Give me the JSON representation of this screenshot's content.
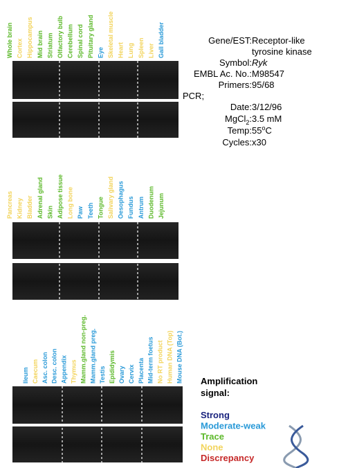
{
  "panels": [
    {
      "lanes": [
        {
          "label": "Whole brain",
          "color": "#5cb82a"
        },
        {
          "label": "Cortex",
          "color": "#f2d45c"
        },
        {
          "label": "Hippocampus",
          "color": "#f2d45c"
        },
        {
          "label": "Mid brain",
          "color": "#5cb82a"
        },
        {
          "label": "Striatum",
          "color": "#5cb82a"
        },
        {
          "label": "Olfactory bulb",
          "color": "#5cb82a"
        },
        {
          "label": "Cerebellum",
          "color": "#5cb82a"
        },
        {
          "label": "Spinal cord",
          "color": "#5cb82a"
        },
        {
          "label": "Pituitary gland",
          "color": "#5cb82a"
        },
        {
          "label": "Eye",
          "color": "#2a9ad8"
        },
        {
          "label": "Skeletal muscle",
          "color": "#f2d45c"
        },
        {
          "label": "Heart",
          "color": "#f2d45c"
        },
        {
          "label": "Lung",
          "color": "#f2d45c"
        },
        {
          "label": "Spleen",
          "color": "#f2d45c"
        },
        {
          "label": "Liver",
          "color": "#f2d45c"
        },
        {
          "label": "Gall bladder",
          "color": "#2a9ad8"
        }
      ]
    },
    {
      "lanes": [
        {
          "label": "Pancreas",
          "color": "#f2d45c"
        },
        {
          "label": "Kidney",
          "color": "#f2d45c"
        },
        {
          "label": "Bladder",
          "color": "#f2d45c"
        },
        {
          "label": "Adrenal gland",
          "color": "#5cb82a"
        },
        {
          "label": "Skin",
          "color": "#5cb82a"
        },
        {
          "label": "Adipose tissue",
          "color": "#5cb82a"
        },
        {
          "label": "Long bone",
          "color": "#f2d45c"
        },
        {
          "label": "Paw",
          "color": "#2a9ad8"
        },
        {
          "label": "Teeth",
          "color": "#2a9ad8"
        },
        {
          "label": "Tongue",
          "color": "#5cb82a"
        },
        {
          "label": "Salivary gland",
          "color": "#f2d45c"
        },
        {
          "label": "Oesophagus",
          "color": "#2a9ad8"
        },
        {
          "label": "Fundus",
          "color": "#2a9ad8"
        },
        {
          "label": "Antrum",
          "color": "#2a9ad8"
        },
        {
          "label": "Duodenum",
          "color": "#5cb82a"
        },
        {
          "label": "Jejunum",
          "color": "#5cb82a"
        }
      ]
    },
    {
      "lanes": [
        {
          "label": "Ileum",
          "color": "#2a9ad8"
        },
        {
          "label": "Caecum",
          "color": "#f2d45c"
        },
        {
          "label": "Asc. colon",
          "color": "#2a9ad8"
        },
        {
          "label": "Desc. colon",
          "color": "#2a9ad8"
        },
        {
          "label": "Appendix",
          "color": "#2a9ad8"
        },
        {
          "label": "Thymus",
          "color": "#f2d45c"
        },
        {
          "label": "Mamm.gland non-preg.",
          "color": "#5cb82a"
        },
        {
          "label": "Mamm.gland preg.",
          "color": "#2a9ad8"
        },
        {
          "label": "Testis",
          "color": "#2a9ad8"
        },
        {
          "label": "Epididymis",
          "color": "#5cb82a"
        },
        {
          "label": "Ovary",
          "color": "#2a9ad8"
        },
        {
          "label": "Cervix",
          "color": "#2a9ad8"
        },
        {
          "label": "Placenta",
          "color": "#2a9ad8"
        },
        {
          "label": "Mid-term foetus",
          "color": "#2a9ad8"
        },
        {
          "label": "No RT product",
          "color": "#f2d45c"
        },
        {
          "label": "Human DNA (Top)",
          "color": "#f2d45c"
        },
        {
          "label": "Mouse DNA (Bot.)",
          "color": "#2a9ad8"
        }
      ]
    }
  ],
  "info": [
    {
      "label": "Gene/EST:",
      "value": [
        "Receptor-like",
        "tyrosine kinase"
      ]
    },
    {
      "label": "Symbol:",
      "value": [
        "Ryk"
      ],
      "italic": true
    },
    {
      "label": "EMBL Ac. No.:",
      "value": [
        "M98547"
      ]
    },
    {
      "label": "Primers:",
      "value": [
        "95/68"
      ]
    },
    {
      "label": "PCR;"
    },
    {
      "label": "Date:",
      "value": [
        "3/12/96"
      ]
    },
    {
      "label": "MgCl",
      "sub": "2",
      "label_end": ":",
      "value": [
        "3.5 mM"
      ]
    },
    {
      "label": "Temp:",
      "value": [
        "55"
      ],
      "sup": "o",
      "value_end": "C"
    },
    {
      "label": "Cycles:",
      "value": [
        "x30"
      ]
    }
  ],
  "legend": {
    "title": [
      "Amplification",
      "signal:"
    ],
    "items": [
      {
        "label": "Strong",
        "color": "#1a237e"
      },
      {
        "label": "Moderate-weak",
        "color": "#2a9ad8"
      },
      {
        "label": "Trace",
        "color": "#5cb82a"
      },
      {
        "label": "None",
        "color": "#f2d45c"
      },
      {
        "label": "Discrepancy",
        "color": "#c62828"
      }
    ]
  }
}
